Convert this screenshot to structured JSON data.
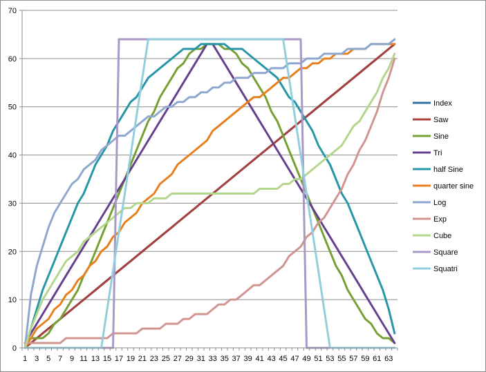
{
  "chart_data": {
    "type": "line",
    "title": "",
    "xlabel": "",
    "ylabel": "",
    "ylim": [
      0,
      70
    ],
    "yticks": [
      0,
      10,
      20,
      30,
      40,
      50,
      60,
      70
    ],
    "x": [
      1,
      2,
      3,
      4,
      5,
      6,
      7,
      8,
      9,
      10,
      11,
      12,
      13,
      14,
      15,
      16,
      17,
      18,
      19,
      20,
      21,
      22,
      23,
      24,
      25,
      26,
      27,
      28,
      29,
      30,
      31,
      32,
      33,
      34,
      35,
      36,
      37,
      38,
      39,
      40,
      41,
      42,
      43,
      44,
      45,
      46,
      47,
      48,
      49,
      50,
      51,
      52,
      53,
      54,
      55,
      56,
      57,
      58,
      59,
      60,
      61,
      62,
      63,
      64
    ],
    "xtick_labels": [
      "1",
      "3",
      "5",
      "7",
      "9",
      "11",
      "13",
      "15",
      "17",
      "19",
      "21",
      "23",
      "25",
      "27",
      "29",
      "31",
      "33",
      "35",
      "37",
      "39",
      "41",
      "43",
      "45",
      "47",
      "49",
      "51",
      "53",
      "55",
      "57",
      "59",
      "61",
      "63"
    ],
    "grid": "horizontal",
    "legend_position": "right",
    "series": [
      {
        "name": "Index",
        "color": "#2f6f9f",
        "values": [
          0,
          1,
          2,
          3,
          4,
          5,
          6,
          7,
          8,
          9,
          10,
          11,
          12,
          13,
          14,
          15,
          16,
          17,
          18,
          19,
          20,
          21,
          22,
          23,
          24,
          25,
          26,
          27,
          28,
          29,
          30,
          31,
          32,
          33,
          34,
          35,
          36,
          37,
          38,
          39,
          40,
          41,
          42,
          43,
          44,
          45,
          46,
          47,
          48,
          49,
          50,
          51,
          52,
          53,
          54,
          55,
          56,
          57,
          58,
          59,
          60,
          61,
          62,
          63
        ]
      },
      {
        "name": "Saw",
        "color": "#a5403c",
        "values": [
          0,
          1,
          2,
          3,
          4,
          5,
          6,
          7,
          8,
          9,
          10,
          11,
          12,
          13,
          14,
          15,
          16,
          17,
          18,
          19,
          20,
          21,
          22,
          23,
          24,
          25,
          26,
          27,
          28,
          29,
          30,
          31,
          32,
          33,
          34,
          35,
          36,
          37,
          38,
          39,
          40,
          41,
          42,
          43,
          44,
          45,
          46,
          47,
          48,
          49,
          50,
          51,
          52,
          53,
          54,
          55,
          56,
          57,
          58,
          59,
          60,
          61,
          62,
          63
        ]
      },
      {
        "name": "Sine",
        "color": "#77a033",
        "values": [
          1,
          2,
          2,
          2,
          3,
          5,
          6,
          8,
          10,
          12,
          15,
          17,
          20,
          23,
          26,
          29,
          32,
          35,
          38,
          41,
          44,
          47,
          49,
          52,
          54,
          56,
          58,
          59,
          61,
          62,
          62,
          63,
          63,
          63,
          62,
          62,
          61,
          59,
          58,
          56,
          54,
          52,
          49,
          47,
          44,
          41,
          38,
          35,
          32,
          29,
          26,
          23,
          20,
          17,
          15,
          12,
          10,
          8,
          6,
          5,
          3,
          2,
          2,
          1
        ]
      },
      {
        "name": "Tri",
        "color": "#66408c",
        "values": [
          1,
          3,
          5,
          7,
          9,
          11,
          13,
          15,
          17,
          19,
          21,
          23,
          25,
          27,
          29,
          31,
          33,
          35,
          37,
          39,
          41,
          43,
          45,
          47,
          49,
          51,
          53,
          55,
          57,
          59,
          61,
          63,
          63,
          61,
          59,
          57,
          55,
          53,
          51,
          49,
          47,
          45,
          43,
          41,
          39,
          37,
          35,
          33,
          31,
          29,
          27,
          25,
          23,
          21,
          19,
          17,
          15,
          13,
          11,
          9,
          7,
          5,
          3,
          1
        ]
      },
      {
        "name": "half Sine",
        "color": "#2796a8",
        "values": [
          0,
          4,
          8,
          12,
          15,
          18,
          21,
          24,
          27,
          30,
          32,
          35,
          38,
          40,
          42,
          45,
          47,
          49,
          51,
          52,
          54,
          56,
          57,
          58,
          59,
          60,
          61,
          62,
          62,
          62,
          63,
          63,
          63,
          63,
          63,
          62,
          62,
          62,
          61,
          60,
          59,
          58,
          57,
          56,
          54,
          52,
          51,
          49,
          47,
          45,
          42,
          40,
          38,
          35,
          32,
          30,
          27,
          24,
          21,
          18,
          15,
          12,
          8,
          3
        ]
      },
      {
        "name": "quarter sine",
        "color": "#e5801c",
        "values": [
          0,
          2,
          4,
          5,
          6,
          8,
          9,
          11,
          12,
          14,
          15,
          17,
          18,
          20,
          21,
          23,
          24,
          26,
          27,
          28,
          30,
          31,
          32,
          34,
          35,
          36,
          38,
          39,
          40,
          41,
          42,
          43,
          45,
          46,
          47,
          48,
          49,
          50,
          51,
          52,
          52,
          53,
          54,
          55,
          56,
          56,
          57,
          58,
          58,
          59,
          59,
          60,
          60,
          61,
          61,
          61,
          62,
          62,
          62,
          63,
          63,
          63,
          63,
          63
        ]
      },
      {
        "name": "Log",
        "color": "#8ea7cf",
        "values": [
          0,
          11,
          17,
          21,
          25,
          28,
          30,
          32,
          34,
          35,
          37,
          38,
          39,
          41,
          42,
          43,
          44,
          44,
          45,
          46,
          47,
          48,
          48,
          49,
          50,
          50,
          51,
          51,
          52,
          52,
          53,
          53,
          54,
          54,
          55,
          55,
          56,
          56,
          56,
          57,
          57,
          57,
          58,
          58,
          58,
          59,
          59,
          59,
          60,
          60,
          60,
          61,
          61,
          61,
          61,
          62,
          62,
          62,
          62,
          63,
          63,
          63,
          63,
          64
        ]
      },
      {
        "name": "Exp",
        "color": "#d09491",
        "values": [
          1,
          1,
          1,
          1,
          1,
          1,
          1,
          2,
          2,
          2,
          2,
          2,
          2,
          2,
          2,
          3,
          3,
          3,
          3,
          3,
          4,
          4,
          4,
          4,
          5,
          5,
          5,
          6,
          6,
          7,
          7,
          7,
          8,
          9,
          9,
          10,
          10,
          11,
          12,
          13,
          13,
          14,
          15,
          16,
          17,
          19,
          20,
          21,
          23,
          24,
          26,
          27,
          29,
          31,
          33,
          36,
          38,
          41,
          43,
          46,
          49,
          53,
          56,
          60
        ]
      },
      {
        "name": "Cube",
        "color": "#b4d58c",
        "values": [
          0,
          4,
          7,
          10,
          12,
          14,
          16,
          18,
          19,
          20,
          22,
          23,
          24,
          25,
          26,
          27,
          28,
          29,
          29,
          30,
          30,
          30,
          31,
          31,
          31,
          32,
          32,
          32,
          32,
          32,
          32,
          32,
          32,
          32,
          32,
          32,
          32,
          32,
          32,
          32,
          33,
          33,
          33,
          33,
          34,
          34,
          35,
          35,
          36,
          37,
          38,
          39,
          40,
          41,
          42,
          44,
          46,
          47,
          49,
          51,
          53,
          56,
          58,
          61
        ]
      },
      {
        "name": "Square",
        "color": "#a899c6",
        "values": [
          0,
          0,
          0,
          0,
          0,
          0,
          0,
          0,
          0,
          0,
          0,
          0,
          0,
          0,
          0,
          0,
          64,
          64,
          64,
          64,
          64,
          64,
          64,
          64,
          64,
          64,
          64,
          64,
          64,
          64,
          64,
          64,
          64,
          64,
          64,
          64,
          64,
          64,
          64,
          64,
          64,
          64,
          64,
          64,
          64,
          64,
          64,
          64,
          0,
          0,
          0,
          0,
          0,
          0,
          0,
          0,
          0,
          0,
          0,
          0,
          0,
          0,
          0,
          0
        ]
      },
      {
        "name": "Squatri",
        "color": "#93cedd",
        "values": [
          0,
          0,
          0,
          0,
          0,
          0,
          0,
          0,
          0,
          0,
          0,
          0,
          0,
          0,
          8,
          16,
          24,
          32,
          40,
          48,
          56,
          64,
          64,
          64,
          64,
          64,
          64,
          64,
          64,
          64,
          64,
          64,
          64,
          64,
          64,
          64,
          64,
          64,
          64,
          64,
          64,
          64,
          64,
          64,
          64,
          56,
          48,
          40,
          32,
          24,
          16,
          8,
          0,
          0,
          0,
          0,
          0,
          0,
          0,
          0,
          0,
          0,
          0,
          0
        ]
      }
    ]
  }
}
